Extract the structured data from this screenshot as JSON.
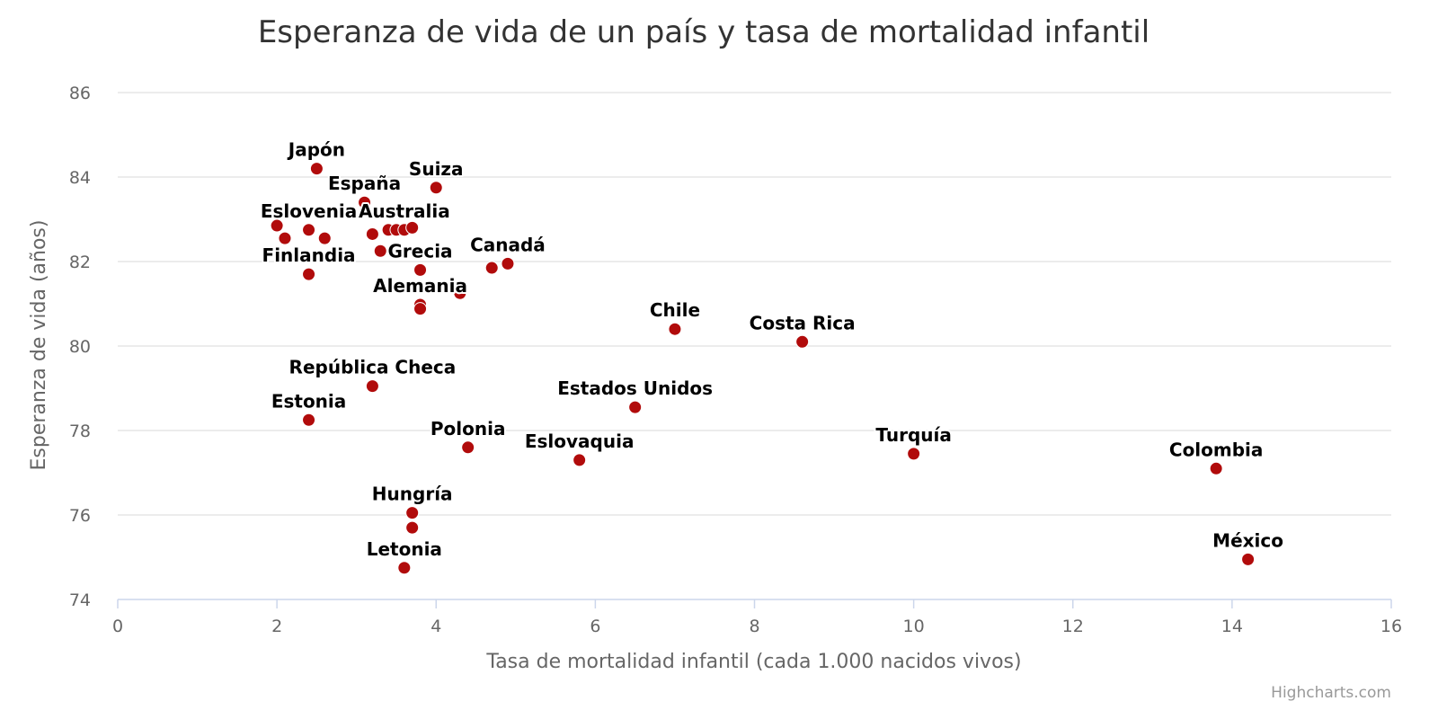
{
  "chart_data": {
    "type": "scatter",
    "title": "Esperanza de vida de un país y tasa de mortalidad infantil",
    "xlabel": "Tasa de mortalidad infantil (cada 1.000 nacidos vivos)",
    "ylabel": "Esperanza de vida (años)",
    "xlim": [
      0,
      16
    ],
    "ylim": [
      74,
      86
    ],
    "xticks": [
      0,
      2,
      4,
      6,
      8,
      10,
      12,
      14,
      16
    ],
    "yticks": [
      74,
      76,
      78,
      80,
      82,
      84,
      86
    ],
    "grid": "horizontal",
    "legend": "none",
    "marker_color": "#b10b0b",
    "credits": "Highcharts.com",
    "points": [
      {
        "x": 2.5,
        "y": 84.2,
        "label": "Japón"
      },
      {
        "x": 4.0,
        "y": 83.75,
        "label": "Suiza"
      },
      {
        "x": 3.1,
        "y": 83.4,
        "label": "España"
      },
      {
        "x": 2.0,
        "y": 82.85,
        "label": ""
      },
      {
        "x": 2.4,
        "y": 82.75,
        "label": "Eslovenia"
      },
      {
        "x": 2.1,
        "y": 82.55,
        "label": ""
      },
      {
        "x": 2.6,
        "y": 82.55,
        "label": ""
      },
      {
        "x": 3.2,
        "y": 82.65,
        "label": ""
      },
      {
        "x": 3.4,
        "y": 82.75,
        "label": ""
      },
      {
        "x": 3.5,
        "y": 82.75,
        "label": ""
      },
      {
        "x": 3.6,
        "y": 82.75,
        "label": "Australia"
      },
      {
        "x": 3.7,
        "y": 82.8,
        "label": ""
      },
      {
        "x": 3.3,
        "y": 82.25,
        "label": ""
      },
      {
        "x": 3.8,
        "y": 81.8,
        "label": "Grecia"
      },
      {
        "x": 2.4,
        "y": 81.7,
        "label": "Finlandia"
      },
      {
        "x": 4.7,
        "y": 81.85,
        "label": ""
      },
      {
        "x": 4.9,
        "y": 81.95,
        "label": "Canadá"
      },
      {
        "x": 4.3,
        "y": 81.25,
        "label": ""
      },
      {
        "x": 3.8,
        "y": 80.98,
        "label": "Alemania"
      },
      {
        "x": 3.8,
        "y": 80.88,
        "label": ""
      },
      {
        "x": 7.0,
        "y": 80.4,
        "label": "Chile"
      },
      {
        "x": 8.6,
        "y": 80.1,
        "label": "Costa Rica"
      },
      {
        "x": 3.2,
        "y": 79.05,
        "label": "República Checa"
      },
      {
        "x": 2.4,
        "y": 78.25,
        "label": "Estonia"
      },
      {
        "x": 6.5,
        "y": 78.55,
        "label": "Estados Unidos"
      },
      {
        "x": 4.4,
        "y": 77.6,
        "label": "Polonia"
      },
      {
        "x": 5.8,
        "y": 77.3,
        "label": "Eslovaquia"
      },
      {
        "x": 10.0,
        "y": 77.45,
        "label": "Turquía"
      },
      {
        "x": 13.8,
        "y": 77.1,
        "label": "Colombia"
      },
      {
        "x": 3.7,
        "y": 76.05,
        "label": "Hungría"
      },
      {
        "x": 3.7,
        "y": 75.7,
        "label": ""
      },
      {
        "x": 3.6,
        "y": 74.75,
        "label": "Letonia"
      },
      {
        "x": 14.2,
        "y": 74.95,
        "label": "México"
      }
    ]
  }
}
